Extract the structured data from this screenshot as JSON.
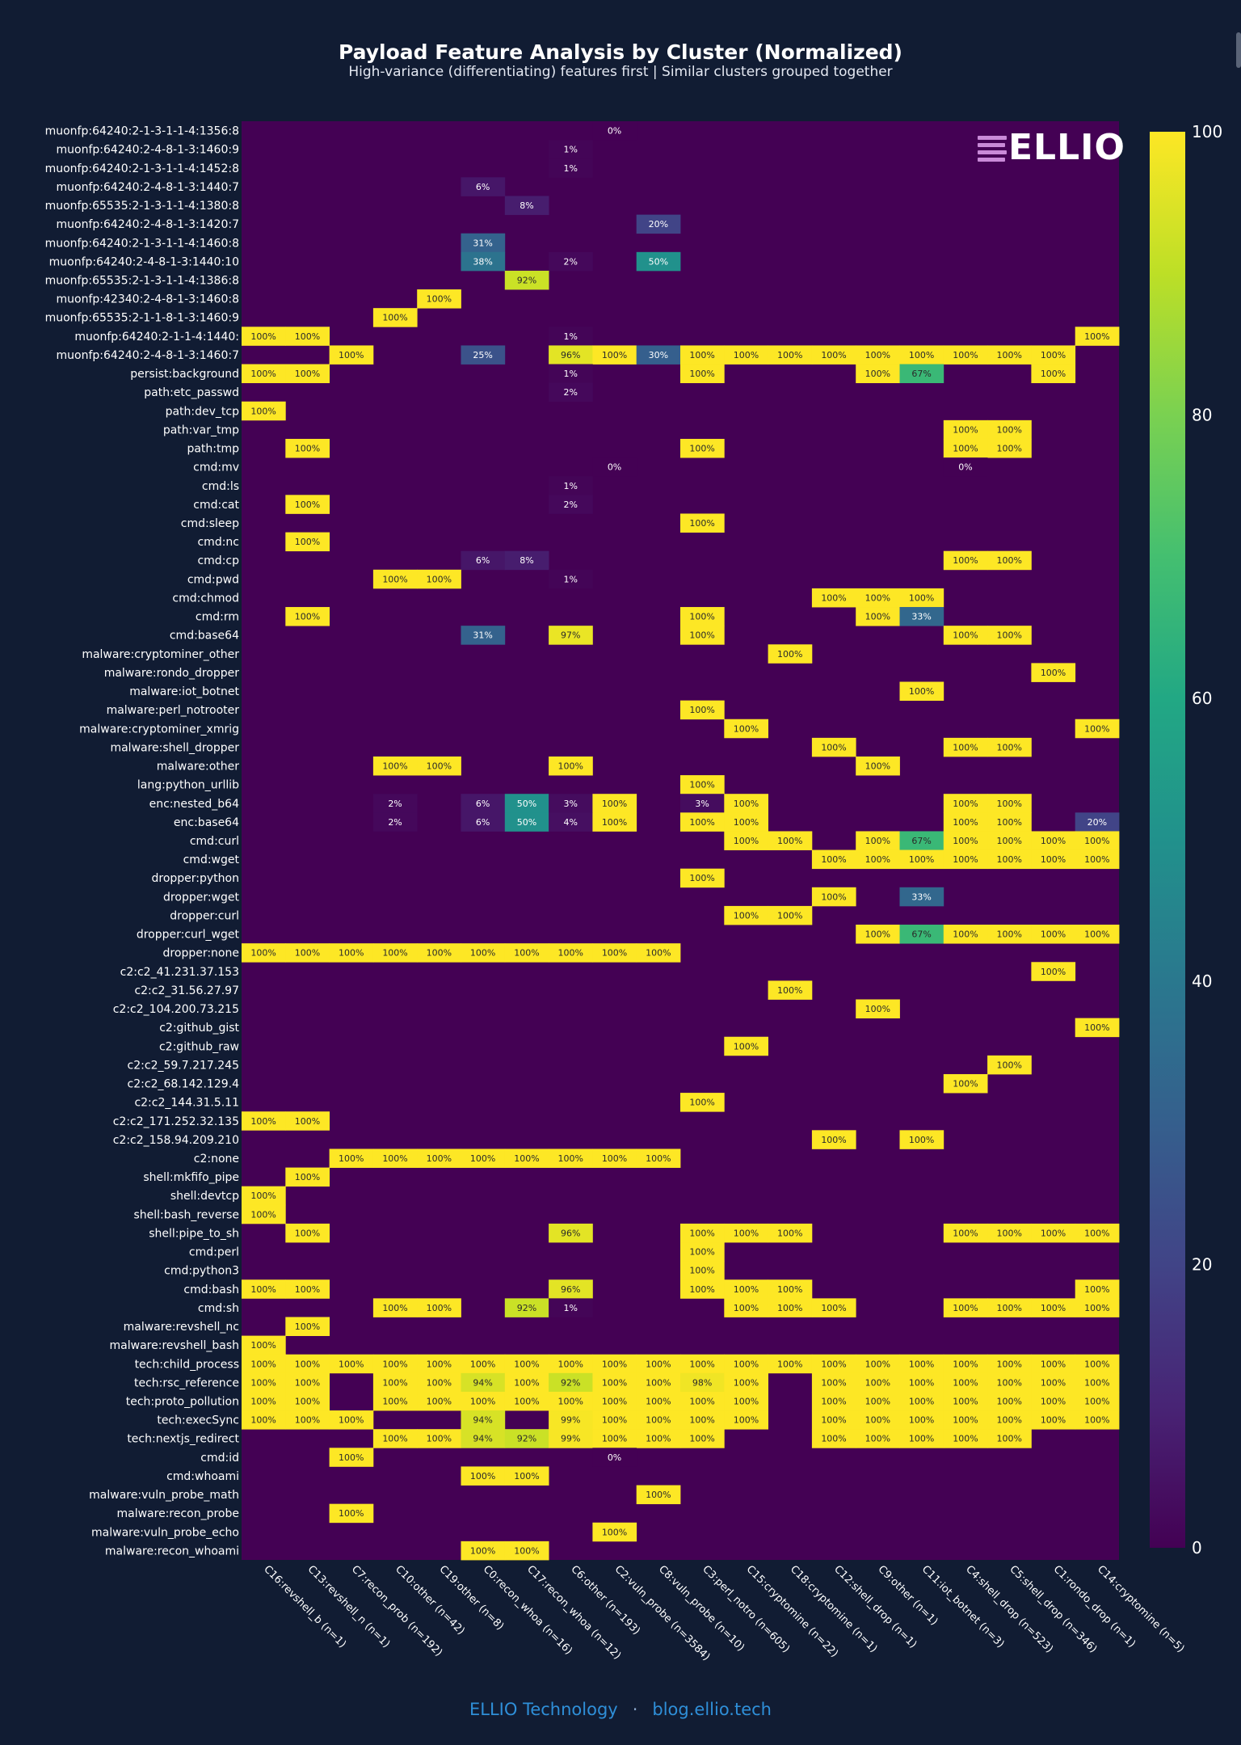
{
  "title": "Payload Feature Analysis by Cluster (Normalized)",
  "subtitle": "High-variance (differentiating) features first | Similar clusters grouped together",
  "logo": {
    "text": "ELLIO"
  },
  "footer": {
    "left": "ELLIO Technology",
    "separator": "·",
    "right": "blog.ellio.tech"
  },
  "colors": {
    "background": "#111c33",
    "colorscale": "viridis",
    "empty": "#440154"
  },
  "chart_data": {
    "type": "heatmap",
    "title": "Payload Feature Analysis by Cluster (Normalized)",
    "colorscale": "viridis",
    "zmin": 0,
    "zmax": 100,
    "colorbar_ticks": [
      0,
      20,
      40,
      60,
      80,
      100
    ],
    "x": [
      "C16:revshell_b (n=1)",
      "C13:revshell_n (n=1)",
      "C7:recon_prob (n=192)",
      "C10:other (n=42)",
      "C19:other (n=8)",
      "C0:recon_whoa (n=16)",
      "C17:recon_whoa (n=12)",
      "C6:other (n=193)",
      "C2:vuln_probe (n=3584)",
      "C8:vuln_probe (n=10)",
      "C3:perl_notro (n=605)",
      "C15:cryptomine (n=22)",
      "C18:cryptomine (n=1)",
      "C12:shell_drop (n=1)",
      "C9:other (n=1)",
      "C11:iot_botnet (n=3)",
      "C4:shell_drop (n=523)",
      "C5:shell_drop (n=346)",
      "C1:rondo_drop (n=1)",
      "C14:cryptomine (n=5)"
    ],
    "y": [
      "muonfp:64240:2-1-3-1-1-4:1356:8",
      "muonfp:64240:2-4-8-1-3:1460:9",
      "muonfp:64240:2-1-3-1-1-4:1452:8",
      "muonfp:64240:2-4-8-1-3:1440:7",
      "muonfp:65535:2-1-3-1-1-4:1380:8",
      "muonfp:64240:2-4-8-1-3:1420:7",
      "muonfp:64240:2-1-3-1-1-4:1460:8",
      "muonfp:64240:2-4-8-1-3:1440:10",
      "muonfp:65535:2-1-3-1-1-4:1386:8",
      "muonfp:42340:2-4-8-1-3:1460:8",
      "muonfp:65535:2-1-1-8-1-3:1460:9",
      "muonfp:64240:2-1-1-4:1440:",
      "muonfp:64240:2-4-8-1-3:1460:7",
      "persist:background",
      "path:etc_passwd",
      "path:dev_tcp",
      "path:var_tmp",
      "path:tmp",
      "cmd:mv",
      "cmd:ls",
      "cmd:cat",
      "cmd:sleep",
      "cmd:nc",
      "cmd:cp",
      "cmd:pwd",
      "cmd:chmod",
      "cmd:rm",
      "cmd:base64",
      "malware:cryptominer_other",
      "malware:rondo_dropper",
      "malware:iot_botnet",
      "malware:perl_notrooter",
      "malware:cryptominer_xmrig",
      "malware:shell_dropper",
      "malware:other",
      "lang:python_urllib",
      "enc:nested_b64",
      "enc:base64",
      "cmd:curl",
      "cmd:wget",
      "dropper:python",
      "dropper:wget",
      "dropper:curl",
      "dropper:curl_wget",
      "dropper:none",
      "c2:c2_41.231.37.153",
      "c2:c2_31.56.27.97",
      "c2:c2_104.200.73.215",
      "c2:github_gist",
      "c2:github_raw",
      "c2:c2_59.7.217.245",
      "c2:c2_68.142.129.4",
      "c2:c2_144.31.5.11",
      "c2:c2_171.252.32.135",
      "c2:c2_158.94.209.210",
      "c2:none",
      "shell:mkfifo_pipe",
      "shell:devtcp",
      "shell:bash_reverse",
      "shell:pipe_to_sh",
      "cmd:perl",
      "cmd:python3",
      "cmd:bash",
      "cmd:sh",
      "malware:revshell_nc",
      "malware:revshell_bash",
      "tech:child_process",
      "tech:rsc_reference",
      "tech:proto_pollution",
      "tech:execSync",
      "tech:nextjs_redirect",
      "cmd:id",
      "cmd:whoami",
      "malware:vuln_probe_math",
      "malware:recon_probe",
      "malware:vuln_probe_echo",
      "malware:recon_whoami"
    ],
    "cells": [
      [
        0,
        8,
        0
      ],
      [
        1,
        7,
        1
      ],
      [
        2,
        7,
        1
      ],
      [
        3,
        5,
        6
      ],
      [
        4,
        6,
        8
      ],
      [
        5,
        9,
        20
      ],
      [
        6,
        5,
        31
      ],
      [
        7,
        5,
        38
      ],
      [
        7,
        7,
        2
      ],
      [
        7,
        9,
        50
      ],
      [
        8,
        6,
        92
      ],
      [
        9,
        4,
        100
      ],
      [
        10,
        3,
        100
      ],
      [
        11,
        0,
        100
      ],
      [
        11,
        1,
        100
      ],
      [
        11,
        7,
        1
      ],
      [
        11,
        19,
        100
      ],
      [
        12,
        2,
        100
      ],
      [
        12,
        5,
        25
      ],
      [
        12,
        7,
        96
      ],
      [
        12,
        8,
        100
      ],
      [
        12,
        9,
        30
      ],
      [
        12,
        10,
        100
      ],
      [
        12,
        11,
        100
      ],
      [
        12,
        12,
        100
      ],
      [
        12,
        13,
        100
      ],
      [
        12,
        14,
        100
      ],
      [
        12,
        15,
        100
      ],
      [
        12,
        16,
        100
      ],
      [
        12,
        17,
        100
      ],
      [
        12,
        18,
        100
      ],
      [
        13,
        0,
        100
      ],
      [
        13,
        1,
        100
      ],
      [
        13,
        7,
        1
      ],
      [
        13,
        10,
        100
      ],
      [
        13,
        14,
        100
      ],
      [
        13,
        15,
        67
      ],
      [
        13,
        18,
        100
      ],
      [
        14,
        7,
        2
      ],
      [
        15,
        0,
        100
      ],
      [
        16,
        16,
        100
      ],
      [
        16,
        17,
        100
      ],
      [
        17,
        1,
        100
      ],
      [
        17,
        10,
        100
      ],
      [
        17,
        16,
        100
      ],
      [
        17,
        17,
        100
      ],
      [
        18,
        8,
        0
      ],
      [
        18,
        16,
        0
      ],
      [
        19,
        7,
        1
      ],
      [
        20,
        1,
        100
      ],
      [
        20,
        7,
        2
      ],
      [
        21,
        10,
        100
      ],
      [
        22,
        1,
        100
      ],
      [
        23,
        5,
        6
      ],
      [
        23,
        6,
        8
      ],
      [
        23,
        16,
        100
      ],
      [
        23,
        17,
        100
      ],
      [
        24,
        3,
        100
      ],
      [
        24,
        4,
        100
      ],
      [
        24,
        7,
        1
      ],
      [
        25,
        13,
        100
      ],
      [
        25,
        14,
        100
      ],
      [
        25,
        15,
        100
      ],
      [
        26,
        1,
        100
      ],
      [
        26,
        10,
        100
      ],
      [
        26,
        14,
        100
      ],
      [
        26,
        15,
        33
      ],
      [
        27,
        5,
        31
      ],
      [
        27,
        7,
        97
      ],
      [
        27,
        10,
        100
      ],
      [
        27,
        16,
        100
      ],
      [
        27,
        17,
        100
      ],
      [
        28,
        12,
        100
      ],
      [
        29,
        18,
        100
      ],
      [
        30,
        15,
        100
      ],
      [
        31,
        10,
        100
      ],
      [
        32,
        11,
        100
      ],
      [
        32,
        19,
        100
      ],
      [
        33,
        13,
        100
      ],
      [
        33,
        16,
        100
      ],
      [
        33,
        17,
        100
      ],
      [
        34,
        3,
        100
      ],
      [
        34,
        4,
        100
      ],
      [
        34,
        7,
        100
      ],
      [
        34,
        14,
        100
      ],
      [
        35,
        10,
        100
      ],
      [
        36,
        3,
        2
      ],
      [
        36,
        5,
        6
      ],
      [
        36,
        6,
        50
      ],
      [
        36,
        7,
        3
      ],
      [
        36,
        8,
        100
      ],
      [
        36,
        10,
        3
      ],
      [
        36,
        11,
        100
      ],
      [
        36,
        16,
        100
      ],
      [
        36,
        17,
        100
      ],
      [
        37,
        3,
        2
      ],
      [
        37,
        5,
        6
      ],
      [
        37,
        6,
        50
      ],
      [
        37,
        7,
        4
      ],
      [
        37,
        8,
        100
      ],
      [
        37,
        10,
        100
      ],
      [
        37,
        11,
        100
      ],
      [
        37,
        16,
        100
      ],
      [
        37,
        17,
        100
      ],
      [
        37,
        19,
        20
      ],
      [
        38,
        11,
        100
      ],
      [
        38,
        12,
        100
      ],
      [
        38,
        14,
        100
      ],
      [
        38,
        15,
        67
      ],
      [
        38,
        16,
        100
      ],
      [
        38,
        17,
        100
      ],
      [
        38,
        18,
        100
      ],
      [
        38,
        19,
        100
      ],
      [
        39,
        13,
        100
      ],
      [
        39,
        14,
        100
      ],
      [
        39,
        15,
        100
      ],
      [
        39,
        16,
        100
      ],
      [
        39,
        17,
        100
      ],
      [
        39,
        18,
        100
      ],
      [
        39,
        19,
        100
      ],
      [
        40,
        10,
        100
      ],
      [
        41,
        13,
        100
      ],
      [
        41,
        15,
        33
      ],
      [
        42,
        11,
        100
      ],
      [
        42,
        12,
        100
      ],
      [
        43,
        14,
        100
      ],
      [
        43,
        15,
        67
      ],
      [
        43,
        16,
        100
      ],
      [
        43,
        17,
        100
      ],
      [
        43,
        18,
        100
      ],
      [
        43,
        19,
        100
      ],
      [
        44,
        0,
        100
      ],
      [
        44,
        1,
        100
      ],
      [
        44,
        2,
        100
      ],
      [
        44,
        3,
        100
      ],
      [
        44,
        4,
        100
      ],
      [
        44,
        5,
        100
      ],
      [
        44,
        6,
        100
      ],
      [
        44,
        7,
        100
      ],
      [
        44,
        8,
        100
      ],
      [
        44,
        9,
        100
      ],
      [
        45,
        18,
        100
      ],
      [
        46,
        12,
        100
      ],
      [
        47,
        14,
        100
      ],
      [
        48,
        19,
        100
      ],
      [
        49,
        11,
        100
      ],
      [
        50,
        17,
        100
      ],
      [
        51,
        16,
        100
      ],
      [
        52,
        10,
        100
      ],
      [
        53,
        0,
        100
      ],
      [
        53,
        1,
        100
      ],
      [
        54,
        13,
        100
      ],
      [
        54,
        15,
        100
      ],
      [
        55,
        2,
        100
      ],
      [
        55,
        3,
        100
      ],
      [
        55,
        4,
        100
      ],
      [
        55,
        5,
        100
      ],
      [
        55,
        6,
        100
      ],
      [
        55,
        7,
        100
      ],
      [
        55,
        8,
        100
      ],
      [
        55,
        9,
        100
      ],
      [
        56,
        1,
        100
      ],
      [
        57,
        0,
        100
      ],
      [
        58,
        0,
        100
      ],
      [
        59,
        1,
        100
      ],
      [
        59,
        7,
        96
      ],
      [
        59,
        10,
        100
      ],
      [
        59,
        11,
        100
      ],
      [
        59,
        12,
        100
      ],
      [
        59,
        16,
        100
      ],
      [
        59,
        17,
        100
      ],
      [
        59,
        18,
        100
      ],
      [
        59,
        19,
        100
      ],
      [
        60,
        10,
        100
      ],
      [
        61,
        10,
        100
      ],
      [
        62,
        0,
        100
      ],
      [
        62,
        1,
        100
      ],
      [
        62,
        7,
        96
      ],
      [
        62,
        10,
        100
      ],
      [
        62,
        11,
        100
      ],
      [
        62,
        12,
        100
      ],
      [
        62,
        19,
        100
      ],
      [
        63,
        3,
        100
      ],
      [
        63,
        4,
        100
      ],
      [
        63,
        6,
        92
      ],
      [
        63,
        7,
        1
      ],
      [
        63,
        11,
        100
      ],
      [
        63,
        12,
        100
      ],
      [
        63,
        13,
        100
      ],
      [
        63,
        16,
        100
      ],
      [
        63,
        17,
        100
      ],
      [
        63,
        18,
        100
      ],
      [
        63,
        19,
        100
      ],
      [
        64,
        1,
        100
      ],
      [
        65,
        0,
        100
      ],
      [
        66,
        0,
        100
      ],
      [
        66,
        1,
        100
      ],
      [
        66,
        2,
        100
      ],
      [
        66,
        3,
        100
      ],
      [
        66,
        4,
        100
      ],
      [
        66,
        5,
        100
      ],
      [
        66,
        6,
        100
      ],
      [
        66,
        7,
        100
      ],
      [
        66,
        8,
        100
      ],
      [
        66,
        9,
        100
      ],
      [
        66,
        10,
        100
      ],
      [
        66,
        11,
        100
      ],
      [
        66,
        12,
        100
      ],
      [
        66,
        13,
        100
      ],
      [
        66,
        14,
        100
      ],
      [
        66,
        15,
        100
      ],
      [
        66,
        16,
        100
      ],
      [
        66,
        17,
        100
      ],
      [
        66,
        18,
        100
      ],
      [
        66,
        19,
        100
      ],
      [
        67,
        0,
        100
      ],
      [
        67,
        1,
        100
      ],
      [
        67,
        3,
        100
      ],
      [
        67,
        4,
        100
      ],
      [
        67,
        5,
        94
      ],
      [
        67,
        6,
        100
      ],
      [
        67,
        7,
        92
      ],
      [
        67,
        8,
        100
      ],
      [
        67,
        9,
        100
      ],
      [
        67,
        10,
        98
      ],
      [
        67,
        11,
        100
      ],
      [
        67,
        13,
        100
      ],
      [
        67,
        14,
        100
      ],
      [
        67,
        15,
        100
      ],
      [
        67,
        16,
        100
      ],
      [
        67,
        17,
        100
      ],
      [
        67,
        18,
        100
      ],
      [
        67,
        19,
        100
      ],
      [
        68,
        0,
        100
      ],
      [
        68,
        1,
        100
      ],
      [
        68,
        3,
        100
      ],
      [
        68,
        4,
        100
      ],
      [
        68,
        5,
        100
      ],
      [
        68,
        6,
        100
      ],
      [
        68,
        7,
        100
      ],
      [
        68,
        8,
        100
      ],
      [
        68,
        9,
        100
      ],
      [
        68,
        10,
        100
      ],
      [
        68,
        11,
        100
      ],
      [
        68,
        13,
        100
      ],
      [
        68,
        14,
        100
      ],
      [
        68,
        15,
        100
      ],
      [
        68,
        16,
        100
      ],
      [
        68,
        17,
        100
      ],
      [
        68,
        18,
        100
      ],
      [
        68,
        19,
        100
      ],
      [
        69,
        0,
        100
      ],
      [
        69,
        1,
        100
      ],
      [
        69,
        2,
        100
      ],
      [
        69,
        5,
        94
      ],
      [
        69,
        7,
        99
      ],
      [
        69,
        8,
        100
      ],
      [
        69,
        9,
        100
      ],
      [
        69,
        10,
        100
      ],
      [
        69,
        11,
        100
      ],
      [
        69,
        13,
        100
      ],
      [
        69,
        14,
        100
      ],
      [
        69,
        15,
        100
      ],
      [
        69,
        16,
        100
      ],
      [
        69,
        17,
        100
      ],
      [
        69,
        18,
        100
      ],
      [
        69,
        19,
        100
      ],
      [
        70,
        3,
        100
      ],
      [
        70,
        4,
        100
      ],
      [
        70,
        5,
        94
      ],
      [
        70,
        6,
        92
      ],
      [
        70,
        7,
        99
      ],
      [
        70,
        8,
        100
      ],
      [
        70,
        9,
        100
      ],
      [
        70,
        10,
        100
      ],
      [
        70,
        13,
        100
      ],
      [
        70,
        14,
        100
      ],
      [
        70,
        15,
        100
      ],
      [
        70,
        16,
        100
      ],
      [
        70,
        17,
        100
      ],
      [
        71,
        2,
        100
      ],
      [
        71,
        8,
        0
      ],
      [
        72,
        5,
        100
      ],
      [
        72,
        6,
        100
      ],
      [
        73,
        9,
        100
      ],
      [
        74,
        2,
        100
      ],
      [
        75,
        8,
        100
      ],
      [
        76,
        5,
        100
      ],
      [
        76,
        6,
        100
      ]
    ]
  }
}
